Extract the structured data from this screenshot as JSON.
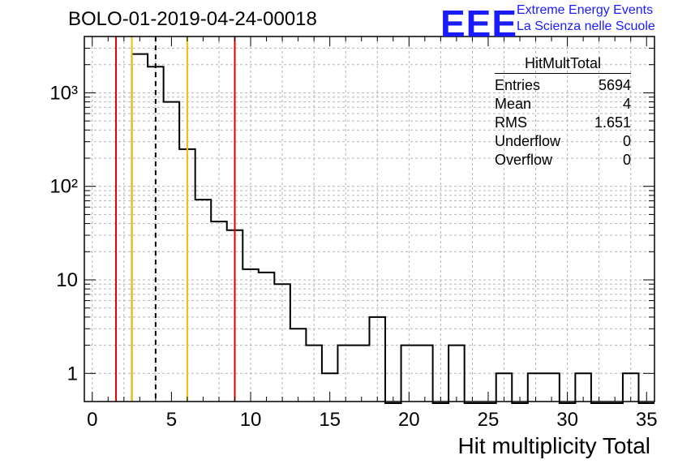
{
  "title": "BOLO-01-2019-04-24-00018",
  "logo": {
    "mark": "EEE",
    "line1": "Extreme Energy Events",
    "line2": "La Scienza nelle Scuole"
  },
  "stats": {
    "name": "HitMultTotal",
    "rows": [
      {
        "label": "Entries",
        "value": "5694"
      },
      {
        "label": "Mean",
        "value": "4"
      },
      {
        "label": "RMS",
        "value": "1.651"
      },
      {
        "label": "Underflow",
        "value": "0"
      },
      {
        "label": "Overflow",
        "value": "0"
      }
    ]
  },
  "chart_data": {
    "type": "histogram",
    "title": "BOLO-01-2019-04-24-00018",
    "xlabel": "Hit multiplicity Total",
    "ylabel": "",
    "xlim": [
      -0.5,
      35.5
    ],
    "ylim": [
      0.5,
      4000
    ],
    "ylog": true,
    "grid": true,
    "bin_width": 1,
    "x_ticks": [
      0,
      5,
      10,
      15,
      20,
      25,
      30,
      35
    ],
    "y_ticks": [
      {
        "v": 1,
        "label": "1"
      },
      {
        "v": 10,
        "label": "10"
      },
      {
        "v": 100,
        "label": "10²"
      },
      {
        "v": 1000,
        "label": "10³"
      }
    ],
    "bins": [
      {
        "x": 3,
        "count": 2600
      },
      {
        "x": 4,
        "count": 1900
      },
      {
        "x": 5,
        "count": 800
      },
      {
        "x": 6,
        "count": 250
      },
      {
        "x": 7,
        "count": 72
      },
      {
        "x": 8,
        "count": 42
      },
      {
        "x": 9,
        "count": 34
      },
      {
        "x": 10,
        "count": 13
      },
      {
        "x": 11,
        "count": 12
      },
      {
        "x": 12,
        "count": 9
      },
      {
        "x": 13,
        "count": 3
      },
      {
        "x": 14,
        "count": 2
      },
      {
        "x": 15,
        "count": 1
      },
      {
        "x": 16,
        "count": 2
      },
      {
        "x": 17,
        "count": 2
      },
      {
        "x": 18,
        "count": 4
      },
      {
        "x": 19,
        "count": 0
      },
      {
        "x": 20,
        "count": 2
      },
      {
        "x": 21,
        "count": 2
      },
      {
        "x": 22,
        "count": 0
      },
      {
        "x": 23,
        "count": 2
      },
      {
        "x": 24,
        "count": 0
      },
      {
        "x": 25,
        "count": 0
      },
      {
        "x": 26,
        "count": 1
      },
      {
        "x": 27,
        "count": 0
      },
      {
        "x": 28,
        "count": 1
      },
      {
        "x": 29,
        "count": 1
      },
      {
        "x": 30,
        "count": 0
      },
      {
        "x": 31,
        "count": 1
      },
      {
        "x": 32,
        "count": 0
      },
      {
        "x": 33,
        "count": 0
      },
      {
        "x": 34,
        "count": 1
      },
      {
        "x": 35,
        "count": 0
      }
    ],
    "vlines": [
      {
        "x": 1.5,
        "color": "#e00000",
        "style": "solid"
      },
      {
        "x": 2.5,
        "color": "#f0c000",
        "style": "solid"
      },
      {
        "x": 4.0,
        "color": "#000000",
        "style": "dashed"
      },
      {
        "x": 6.0,
        "color": "#f0c000",
        "style": "solid"
      },
      {
        "x": 9.0,
        "color": "#e00000",
        "style": "solid"
      }
    ]
  }
}
